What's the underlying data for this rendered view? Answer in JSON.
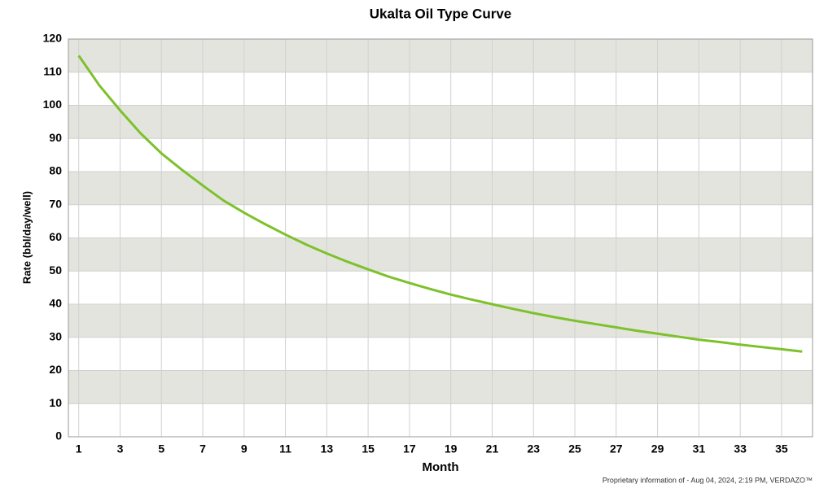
{
  "chart_data": {
    "type": "line",
    "title": "Ukalta Oil Type Curve",
    "x_label": "Month",
    "y_label": "Rate (bbl/day/well)",
    "footer": "Proprietary information of - Aug 04, 2024, 2:19 PM, VERDAZO™",
    "x": [
      1,
      2,
      3,
      4,
      5,
      6,
      7,
      8,
      9,
      10,
      11,
      12,
      13,
      14,
      15,
      16,
      17,
      18,
      19,
      20,
      21,
      22,
      23,
      24,
      25,
      26,
      27,
      28,
      29,
      30,
      31,
      32,
      33,
      34,
      35,
      36
    ],
    "series": [
      {
        "name": "Oil",
        "color": "#7dc12c",
        "values": [
          115,
          106,
          98.5,
          91.5,
          85.5,
          80.5,
          75.8,
          71.3,
          67.6,
          64.2,
          61,
          58,
          55.3,
          52.8,
          50.5,
          48.3,
          46.4,
          44.6,
          42.9,
          41.4,
          40,
          38.6,
          37.3,
          36.1,
          35,
          34,
          33,
          32,
          31.1,
          30.2,
          29.3,
          28.6,
          27.8,
          27.1,
          26.4,
          25.7
        ]
      }
    ],
    "xlim": [
      0.5,
      36.5
    ],
    "xticks": [
      1,
      3,
      5,
      7,
      9,
      11,
      13,
      15,
      17,
      19,
      21,
      23,
      25,
      27,
      29,
      31,
      33,
      35
    ],
    "ylim": [
      0,
      120
    ],
    "yticks": [
      0,
      10,
      20,
      30,
      40,
      50,
      60,
      70,
      80,
      90,
      100,
      110,
      120
    ],
    "grid": true,
    "band_color": "#e4e4de"
  }
}
